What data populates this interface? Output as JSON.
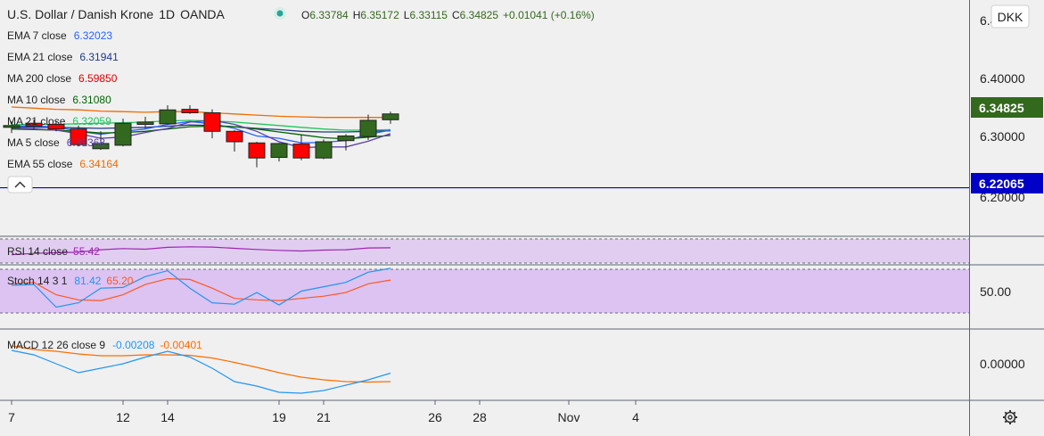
{
  "header": {
    "symbol": "U.S. Dollar / Danish Krone",
    "interval": "1D",
    "exchange": "OANDA",
    "live_dot_color": "#26a69a",
    "o_label": "O",
    "o_value": "6.33784",
    "h_label": "H",
    "h_value": "6.35172",
    "l_label": "L",
    "l_value": "6.33115",
    "c_label": "C",
    "c_value": "6.34825",
    "change": "+0.01041 (+0.16%)"
  },
  "indicators": [
    {
      "label": "EMA 7 close",
      "value": "6.32023",
      "color": "#2962ff"
    },
    {
      "label": "EMA 21 close",
      "value": "6.31941",
      "color": "#1e3a8a"
    },
    {
      "label": "MA 200 close",
      "value": "6.59850",
      "color": "#e00000"
    },
    {
      "label": "MA 10 close",
      "value": "6.31080",
      "color": "#006400"
    },
    {
      "label": "MA 21 close",
      "value": "6.32059",
      "color": "#22c55e"
    },
    {
      "label": "MA 5 close",
      "value": "6.31368",
      "color": "#5b3fa8"
    },
    {
      "label": "EMA 55 close",
      "value": "6.34164",
      "color": "#ef6c00"
    }
  ],
  "currency_badge": "DKK",
  "settings_icon": "gear-icon",
  "collapse_icon": "chevron-up-icon",
  "x_axis": {
    "ticks": [
      {
        "label": "7",
        "day": 7
      },
      {
        "label": "12",
        "day": 12
      },
      {
        "label": "14",
        "day": 14
      },
      {
        "label": "19",
        "day": 19
      },
      {
        "label": "21",
        "day": 21
      },
      {
        "label": "26",
        "day": 26
      },
      {
        "label": "28",
        "day": 28
      },
      {
        "label": "Nov",
        "day": 32
      },
      {
        "label": "4",
        "day": 35
      }
    ]
  },
  "price_axis": {
    "ticks": [
      "6.4",
      "6.40000",
      "6.30000",
      "6.20000"
    ],
    "current_price_label": "6.34825",
    "current_price_color": "#33691e",
    "line_label": "6.22065",
    "line_color": "#0000c8"
  },
  "rsi": {
    "label": "RSI 14 close",
    "value": "55.42",
    "color": "#9c27b0"
  },
  "stoch": {
    "label": "Stoch 14 3 1",
    "k_value": "81.42",
    "d_value": "65.20",
    "k_color": "#2196f3",
    "d_color": "#ff5722",
    "axis_tick": "50.00"
  },
  "macd": {
    "label": "MACD 12 26 close 9",
    "macd_value": "-0.00208",
    "signal_value": "-0.00401",
    "macd_color": "#2196f3",
    "signal_color": "#ff6d00",
    "axis_tick": "0.00000"
  },
  "chart_data": {
    "type": "candlestick",
    "instrument": "USD/DKK",
    "timeframe": "1D",
    "ylim": [
      6.17,
      6.46
    ],
    "hline": 6.22065,
    "candles": [
      {
        "day": 7,
        "open": 6.325,
        "high": 6.335,
        "low": 6.315,
        "close": 6.328
      },
      {
        "day": 8,
        "open": 6.332,
        "high": 6.338,
        "low": 6.322,
        "close": 6.327
      },
      {
        "day": 9,
        "open": 6.33,
        "high": 6.336,
        "low": 6.318,
        "close": 6.322
      },
      {
        "day": 10,
        "open": 6.322,
        "high": 6.328,
        "low": 6.292,
        "close": 6.295
      },
      {
        "day": 11,
        "open": 6.288,
        "high": 6.318,
        "low": 6.286,
        "close": 6.297
      },
      {
        "day": 12,
        "open": 6.294,
        "high": 6.34,
        "low": 6.292,
        "close": 6.332
      },
      {
        "day": 13,
        "open": 6.33,
        "high": 6.343,
        "low": 6.323,
        "close": 6.334
      },
      {
        "day": 14,
        "open": 6.331,
        "high": 6.363,
        "low": 6.329,
        "close": 6.355
      },
      {
        "day": 15,
        "open": 6.356,
        "high": 6.363,
        "low": 6.348,
        "close": 6.35
      },
      {
        "day": 16,
        "open": 6.35,
        "high": 6.356,
        "low": 6.306,
        "close": 6.318
      },
      {
        "day": 17,
        "open": 6.318,
        "high": 6.32,
        "low": 6.283,
        "close": 6.3
      },
      {
        "day": 18,
        "open": 6.298,
        "high": 6.3,
        "low": 6.256,
        "close": 6.272
      },
      {
        "day": 19,
        "open": 6.273,
        "high": 6.298,
        "low": 6.266,
        "close": 6.297
      },
      {
        "day": 20,
        "open": 6.296,
        "high": 6.312,
        "low": 6.268,
        "close": 6.272
      },
      {
        "day": 21,
        "open": 6.272,
        "high": 6.304,
        "low": 6.27,
        "close": 6.3
      },
      {
        "day": 22,
        "open": 6.302,
        "high": 6.313,
        "low": 6.285,
        "close": 6.31
      },
      {
        "day": 23,
        "open": 6.309,
        "high": 6.347,
        "low": 6.303,
        "close": 6.337
      },
      {
        "day": 24,
        "open": 6.338,
        "high": 6.352,
        "low": 6.331,
        "close": 6.348
      }
    ],
    "series": [
      {
        "name": "EMA 55 close",
        "color": "#ef6c00",
        "values": [
          6.36,
          6.358,
          6.356,
          6.355,
          6.353,
          6.352,
          6.351,
          6.352,
          6.352,
          6.35,
          6.348,
          6.346,
          6.344,
          6.343,
          6.342,
          6.342,
          6.342,
          6.342
        ]
      },
      {
        "name": "MA 21 close",
        "color": "#22c55e",
        "values": [
          6.33,
          6.33,
          6.33,
          6.331,
          6.332,
          6.333,
          6.334,
          6.336,
          6.337,
          6.336,
          6.334,
          6.331,
          6.328,
          6.325,
          6.322,
          6.32,
          6.32,
          6.321
        ]
      },
      {
        "name": "EMA 21 close",
        "color": "#1e3a8a",
        "values": [
          6.326,
          6.325,
          6.325,
          6.324,
          6.323,
          6.324,
          6.325,
          6.327,
          6.329,
          6.328,
          6.326,
          6.323,
          6.321,
          6.318,
          6.317,
          6.317,
          6.318,
          6.319
        ]
      },
      {
        "name": "EMA 7 close",
        "color": "#2962ff",
        "values": [
          6.328,
          6.327,
          6.326,
          6.318,
          6.313,
          6.318,
          6.322,
          6.33,
          6.335,
          6.331,
          6.323,
          6.31,
          6.306,
          6.298,
          6.299,
          6.302,
          6.313,
          6.32
        ]
      },
      {
        "name": "MA 10 close",
        "color": "#006400",
        "values": [
          6.322,
          6.321,
          6.32,
          6.318,
          6.315,
          6.316,
          6.318,
          6.322,
          6.326,
          6.327,
          6.326,
          6.322,
          6.317,
          6.312,
          6.307,
          6.305,
          6.308,
          6.311
        ]
      },
      {
        "name": "MA 5 close",
        "color": "#5b3fa8",
        "values": [
          6.324,
          6.322,
          6.32,
          6.314,
          6.306,
          6.308,
          6.316,
          6.323,
          6.334,
          6.337,
          6.33,
          6.318,
          6.3,
          6.29,
          6.291,
          6.291,
          6.301,
          6.314
        ]
      }
    ],
    "rsi_values": [
      44.0,
      46.0,
      47.0,
      48.0,
      52.0,
      54.0,
      53.0,
      56.0,
      57.0,
      56.5,
      54.5,
      52.5,
      51.0,
      50.0,
      51.5,
      52.0,
      55.0,
      55.4
    ],
    "stoch_k": [
      58.0,
      59.0,
      28.0,
      34.0,
      54.0,
      55.0,
      70.0,
      78.0,
      54.0,
      34.0,
      32.0,
      48.0,
      31.0,
      50.0,
      56.0,
      62.0,
      76.0,
      81.4
    ],
    "stoch_d": [
      60.0,
      62.0,
      45.0,
      38.0,
      37.0,
      45.0,
      59.0,
      67.0,
      66.0,
      54.0,
      40.0,
      38.0,
      37.0,
      40.0,
      43.0,
      48.0,
      60.0,
      65.2
    ],
    "macd_values": [
      0.003,
      0.002,
      0.0,
      -0.002,
      -0.001,
      0.0,
      0.0015,
      0.0028,
      0.0015,
      -0.001,
      -0.004,
      -0.005,
      -0.0064,
      -0.0066,
      -0.006,
      -0.0048,
      -0.0036,
      -0.0021
    ],
    "macd_signal": [
      0.004,
      0.0032,
      0.0028,
      0.0022,
      0.0018,
      0.0018,
      0.002,
      0.002,
      0.0019,
      0.0013,
      0.0003,
      -0.0008,
      -0.002,
      -0.003,
      -0.0036,
      -0.004,
      -0.0041,
      -0.004
    ]
  }
}
